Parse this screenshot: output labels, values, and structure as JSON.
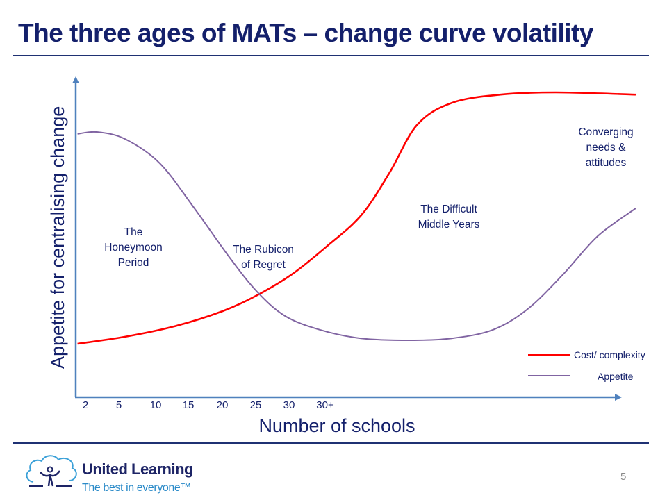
{
  "slide": {
    "title": "The three ages of MATs – change curve volatility",
    "page_number": "5",
    "logo": {
      "name": "United Learning",
      "tagline": "The best in everyone™"
    }
  },
  "annotations": {
    "honeymoon": [
      "The",
      "Honeymoon",
      "Period"
    ],
    "rubicon": [
      "The Rubicon",
      "of Regret"
    ],
    "middle": [
      "The Difficult",
      "Middle Years"
    ],
    "converging": [
      "Converging",
      "needs &",
      "attitudes"
    ]
  },
  "chart_data": {
    "type": "line",
    "title": "",
    "xlabel": "Number of schools",
    "ylabel": "Appetite for centralising change",
    "x_tick_labels": [
      "2",
      "5",
      "10",
      "15",
      "20",
      "25",
      "30",
      "30+"
    ],
    "xlim": [
      0,
      100
    ],
    "ylim": [
      0,
      100
    ],
    "grid": false,
    "legend_position": "bottom-right",
    "series": [
      {
        "name": "Cost/ complexity",
        "color": "#ff0000",
        "x": [
          0.2,
          8.7,
          17.4,
          26.1,
          32.3,
          38.5,
          44.7,
          50.9,
          55.9,
          60.9,
          67.1,
          75.8,
          85.7,
          100
        ],
        "y": [
          16.3,
          18.5,
          21.7,
          26.5,
          31.5,
          38.0,
          46.7,
          56.5,
          69.6,
          84.8,
          91.7,
          94.3,
          95.0,
          94.3
        ]
      },
      {
        "name": "Appetite",
        "color": "#8064a2",
        "x": [
          0.2,
          3.7,
          8.7,
          14.9,
          21.1,
          27.3,
          32.3,
          37.3,
          43.5,
          50.9,
          59.6,
          67.1,
          74.5,
          80.7,
          87.0,
          93.2,
          100
        ],
        "y": [
          82.0,
          82.6,
          80.4,
          72.8,
          58.7,
          43.5,
          32.6,
          25.0,
          20.7,
          18.0,
          17.4,
          18.0,
          20.7,
          27.2,
          38.0,
          50.0,
          58.7
        ]
      }
    ],
    "axis_color": "#4f81bd"
  }
}
